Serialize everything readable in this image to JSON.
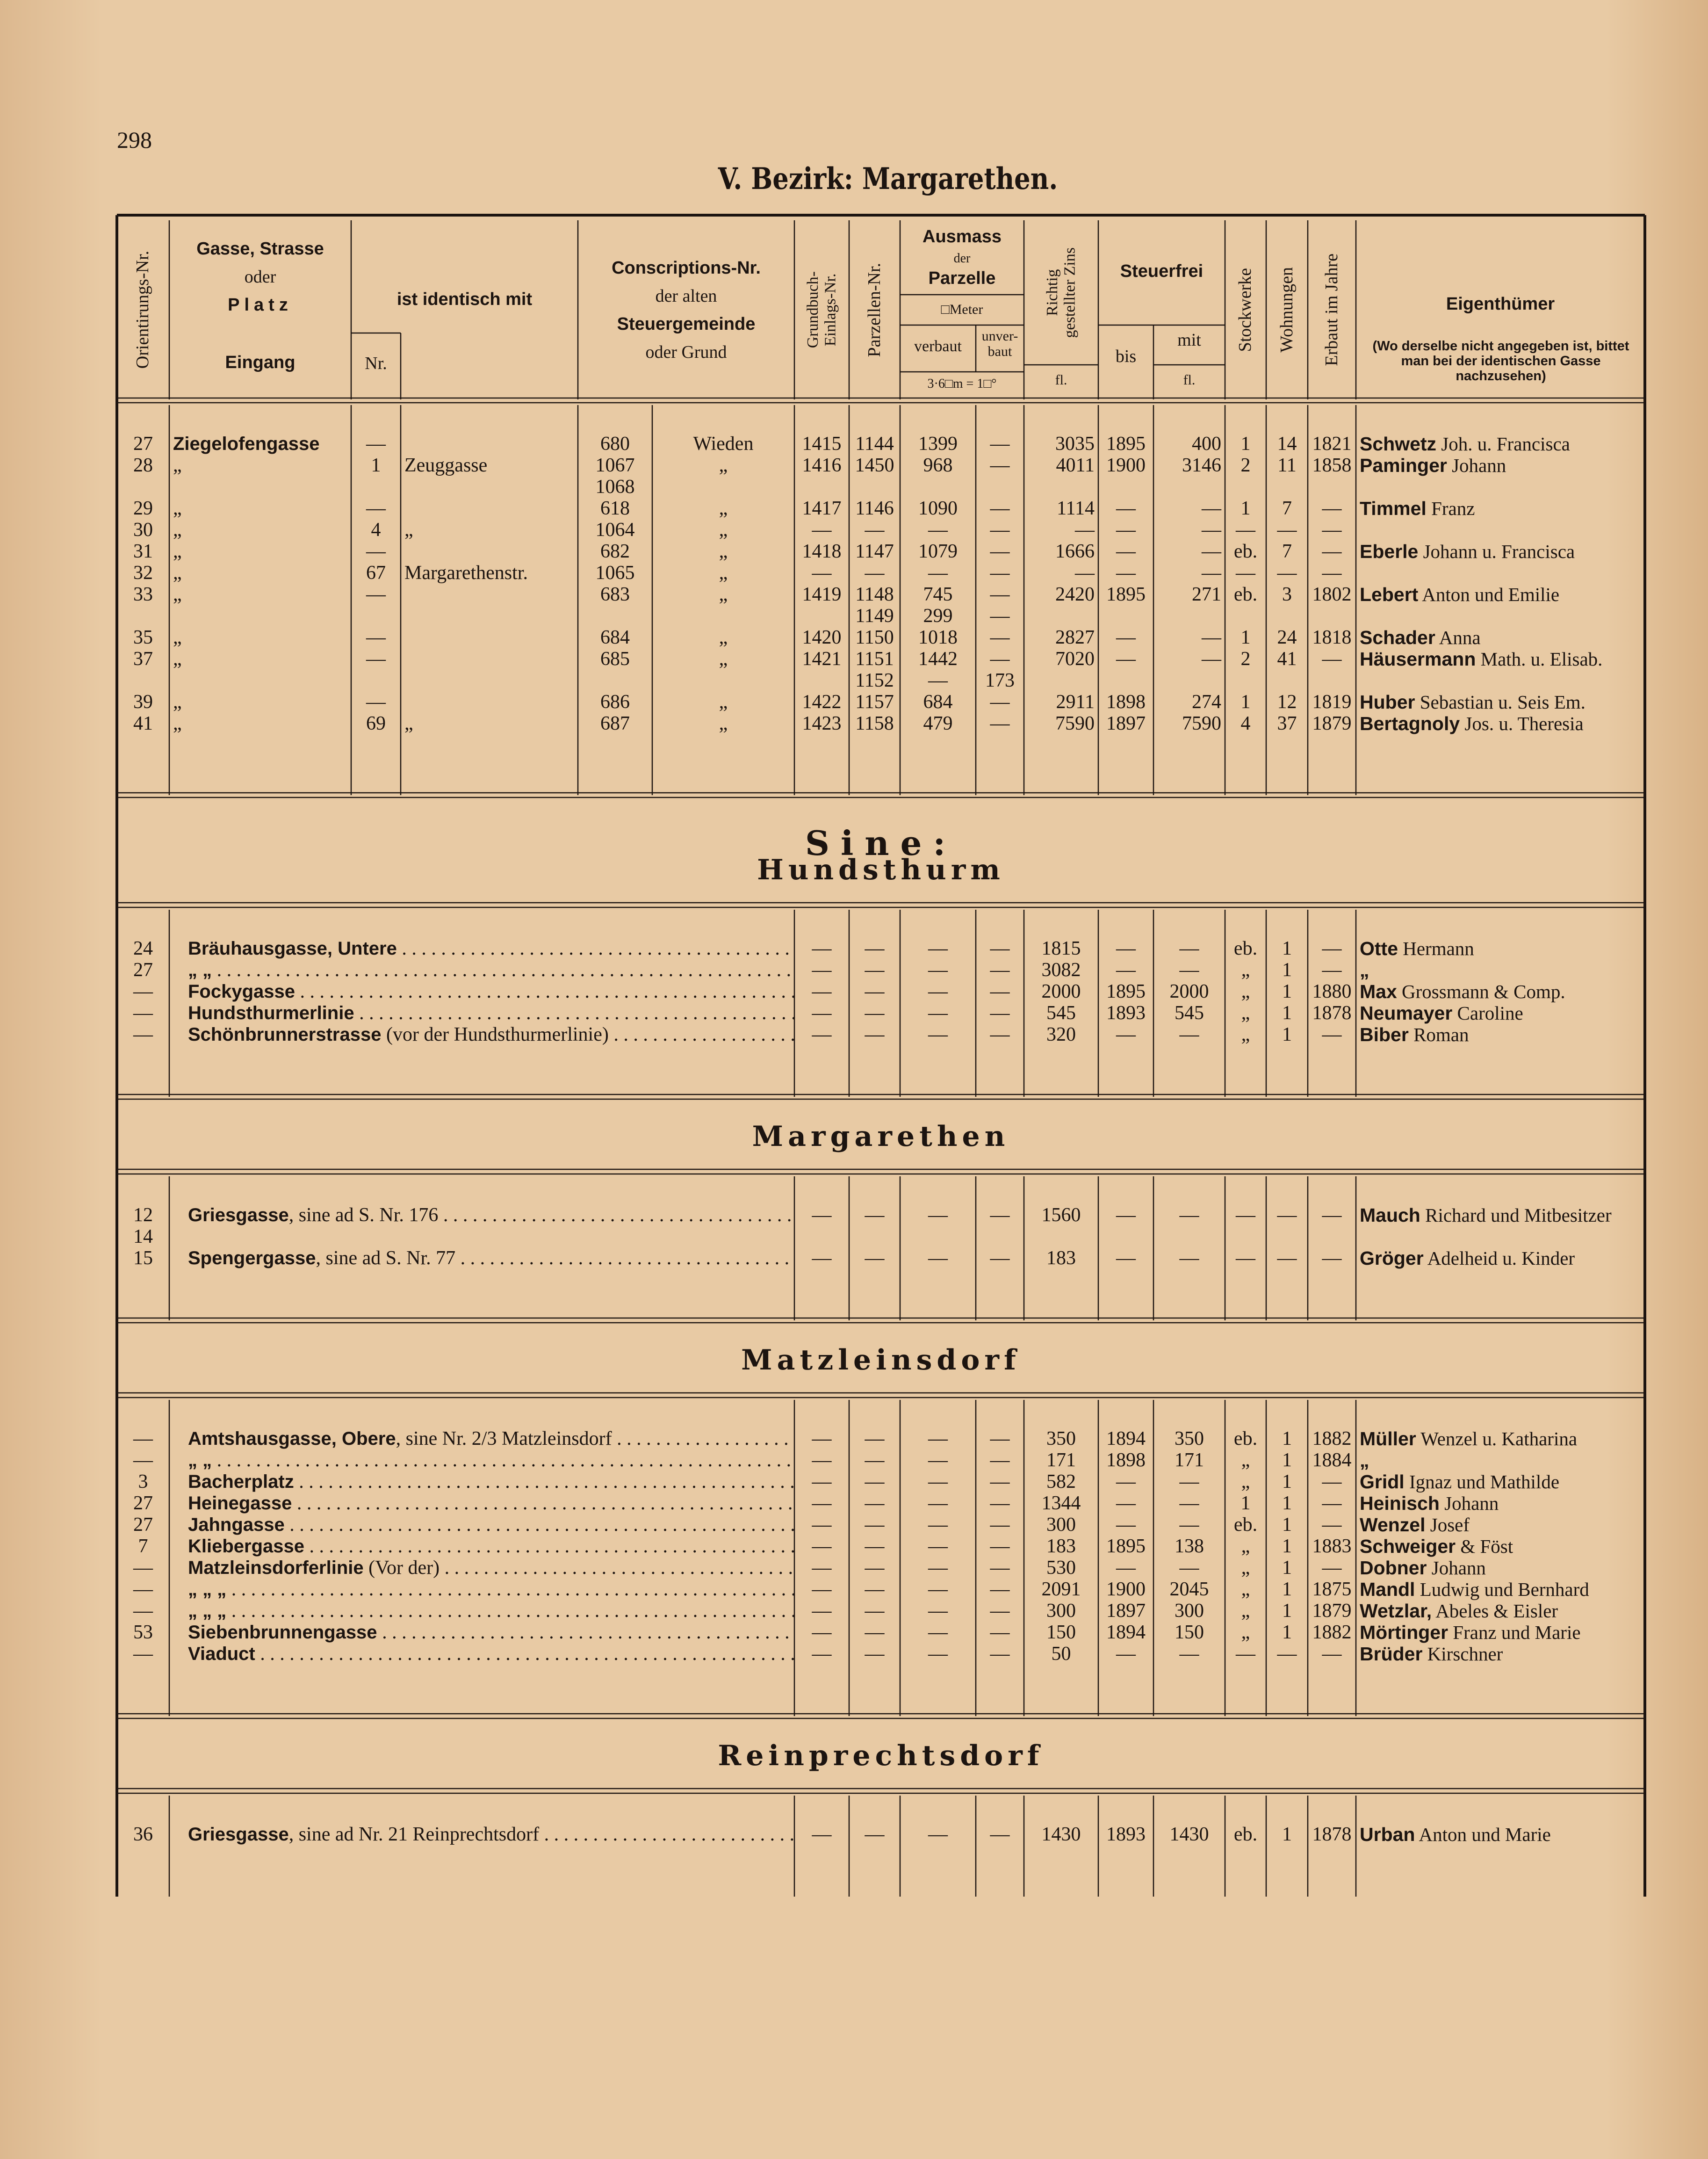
{
  "page_number": "298",
  "title": "V. Bezirk: Margarethen.",
  "header": {
    "orientierungs": "Orientirungs-Nr.",
    "gasse": "Gasse, Strasse",
    "gasse_oder": "oder",
    "platz": "Platz",
    "eingang": "Eingang",
    "identisch": "ist identisch mit",
    "nr": "Nr.",
    "conscr_1": "Conscriptions-Nr.",
    "conscr_2": "der alten",
    "conscr_3": "Steuergemeinde",
    "conscr_4": "oder Grund",
    "grundbuch": "Grundbuch-\nEinlags-Nr.",
    "parzellen": "Parzellen-Nr.",
    "ausmass": "Ausmass",
    "ausmass_der": "der",
    "parzelle": "Parzelle",
    "meter": "□Meter",
    "verbaut": "verbaut",
    "unverbaut": "unver-\nbaut",
    "klafter": "3·6□m = 1□°",
    "zins": "Richtig\ngestellter Zins",
    "zins_fl": "fl.",
    "steuerfrei": "Steuerfrei",
    "bis": "bis",
    "mit": "mit",
    "mit_fl": "fl.",
    "stockwerke": "Stockwerke",
    "wohnungen": "Wohnungen",
    "erbaut": "Erbaut im Jahre",
    "eigenthuemer": "Eigenthümer",
    "eigenthuemer_note": "(Wo derselbe nicht angegeben ist, bittet man bei der identischen Gasse nachzusehen)"
  },
  "main_rows": [
    [
      "27",
      "Ziegelofengasse",
      "—",
      null,
      "680",
      "Wieden",
      "1415",
      "1144",
      "1399",
      "—",
      "3035",
      "1895",
      "400",
      "1",
      "14",
      "1821",
      "Schwetz Joh. u. Francisca"
    ],
    [
      "28",
      "„",
      "1",
      "Zeuggasse",
      "1067\n1068",
      "„",
      "1416",
      "1450",
      "968",
      "—",
      "4011",
      "1900",
      "3146",
      "2",
      "11",
      "1858",
      "Paminger Johann"
    ],
    [
      "29",
      "„",
      "—",
      null,
      "618",
      "„",
      "1417",
      "1146",
      "1090",
      "—",
      "1114",
      "—",
      "—",
      "1",
      "7",
      "—",
      "Timmel Franz"
    ],
    [
      "30",
      "„",
      "4",
      "„",
      "1064",
      "„",
      "—",
      "—",
      "—",
      "—",
      "—",
      "—",
      "—",
      "—",
      "—",
      "—",
      null
    ],
    [
      "31",
      "„",
      "—",
      null,
      "682",
      "„",
      "1418",
      "1147",
      "1079",
      "—",
      "1666",
      "—",
      "—",
      "eb.",
      "7",
      "—",
      "Eberle Johann u. Francisca"
    ],
    [
      "32",
      "„",
      "67",
      "Margarethenstr.",
      "1065",
      "„",
      "—",
      "—",
      "—",
      "—",
      "—",
      "—",
      "—",
      "—",
      "—",
      "—",
      null
    ],
    [
      "33",
      "„",
      "—",
      null,
      "683",
      "„",
      "1419",
      "1148\n1149",
      "745\n299",
      "—\n—",
      "2420",
      "1895",
      "271",
      "eb.",
      "3",
      "1802",
      "Lebert Anton und Emilie"
    ],
    [
      "35",
      "„",
      "—",
      null,
      "684",
      "„",
      "1420",
      "1150",
      "1018",
      "—",
      "2827",
      "—",
      "—",
      "1",
      "24",
      "1818",
      "Schader Anna"
    ],
    [
      "37",
      "„",
      "—",
      null,
      "685",
      "„",
      "1421",
      "1151\n1152",
      "1442\n—",
      "—\n173",
      "7020",
      "—",
      "—",
      "2",
      "41",
      "—",
      "Häusermann Math. u. Elisab."
    ],
    [
      "39",
      "„",
      "—",
      null,
      "686",
      "„",
      "1422",
      "1157",
      "684",
      "—",
      "2911",
      "1898",
      "274",
      "1",
      "12",
      "1819",
      "Huber Sebastian u. Seis Em."
    ],
    [
      "41",
      "„",
      "69",
      "„",
      "687",
      "„",
      "1423",
      "1158",
      "479",
      "—",
      "7590",
      "1897",
      "7590",
      "4",
      "37",
      "1879",
      "Bertagnoly Jos. u. Theresia"
    ]
  ],
  "subheading": "Sine:",
  "sections": [
    {
      "title": "Hundsthurm",
      "rows": [
        [
          "24",
          "Bräuhausgasse, Untere",
          "—",
          "—",
          "—",
          "—",
          "1815",
          "—",
          "—",
          "eb.",
          "1",
          "—",
          "Otte Hermann"
        ],
        [
          "27",
          "„ „",
          "—",
          "—",
          "—",
          "—",
          "3082",
          "—",
          "—",
          "„",
          "1",
          "—",
          "„"
        ],
        [
          "—",
          "Fockygasse",
          "—",
          "—",
          "—",
          "—",
          "2000",
          "1895",
          "2000",
          "„",
          "1",
          "1880",
          "Max Grossmann & Comp."
        ],
        [
          "—",
          "Hundsthurmerlinie",
          "—",
          "—",
          "—",
          "—",
          "545",
          "1893",
          "545",
          "„",
          "1",
          "1878",
          "Neumayer Caroline"
        ],
        [
          "—",
          "Schönbrunnerstrasse (vor der Hundsthurmerlinie)",
          "—",
          "—",
          "—",
          "—",
          "320",
          "—",
          "—",
          "„",
          "1",
          "—",
          "Biber Roman"
        ]
      ]
    },
    {
      "title": "Margarethen",
      "rows": [
        [
          "12\n14",
          "Griesgasse, sine ad S. Nr. 176",
          "—",
          "—",
          "—",
          "—",
          "1560",
          "—",
          "—",
          "—",
          "—",
          "—",
          "Mauch Richard und Mitbesitzer"
        ],
        [
          "15",
          "Spengergasse, sine ad S. Nr. 77",
          "—",
          "—",
          "—",
          "—",
          "183",
          "—",
          "—",
          "—",
          "—",
          "—",
          "Gröger Adelheid u. Kinder"
        ]
      ]
    },
    {
      "title": "Matzleinsdorf",
      "rows": [
        [
          "—",
          "Amtshausgasse, Obere, sine Nr. 2/3 Matzleinsdorf",
          "—",
          "—",
          "—",
          "—",
          "350",
          "1894",
          "350",
          "eb.",
          "1",
          "1882",
          "Müller Wenzel u. Katharina"
        ],
        [
          "—",
          "„ „",
          "—",
          "—",
          "—",
          "—",
          "171",
          "1898",
          "171",
          "„",
          "1",
          "1884",
          "„"
        ],
        [
          "3",
          "Bacherplatz",
          "—",
          "—",
          "—",
          "—",
          "582",
          "—",
          "—",
          "„",
          "1",
          "—",
          "Gridl Ignaz und Mathilde"
        ],
        [
          "27",
          "Heinegasse",
          "—",
          "—",
          "—",
          "—",
          "1344",
          "—",
          "—",
          "1",
          "1",
          "—",
          "Heinisch Johann"
        ],
        [
          "27",
          "Jahngasse",
          "—",
          "—",
          "—",
          "—",
          "300",
          "—",
          "—",
          "eb.",
          "1",
          "—",
          "Wenzel Josef"
        ],
        [
          "7",
          "Kliebergasse",
          "—",
          "—",
          "—",
          "—",
          "183",
          "1895",
          "138",
          "„",
          "1",
          "1883",
          "Schweiger & Föst"
        ],
        [
          "—",
          "Matzleinsdorferlinie (Vor der)",
          "—",
          "—",
          "—",
          "—",
          "530",
          "—",
          "—",
          "„",
          "1",
          "—",
          "Dobner Johann"
        ],
        [
          "—",
          "„ „ „",
          "—",
          "—",
          "—",
          "—",
          "2091",
          "1900",
          "2045",
          "„",
          "1",
          "1875",
          "Mandl Ludwig und Bernhard"
        ],
        [
          "—",
          "„ „ „",
          "—",
          "—",
          "—",
          "—",
          "300",
          "1897",
          "300",
          "„",
          "1",
          "1879",
          "Wetzlar, Abeles & Eisler"
        ],
        [
          "53",
          "Siebenbrunnengasse",
          "—",
          "—",
          "—",
          "—",
          "150",
          "1894",
          "150",
          "„",
          "1",
          "1882",
          "Mörtinger Franz und Marie"
        ],
        [
          "—",
          "Viaduct",
          "—",
          "—",
          "—",
          "—",
          "50",
          "—",
          "—",
          "—",
          "—",
          "—",
          "Brüder Kirschner"
        ]
      ]
    },
    {
      "title": "Reinprechtsdorf",
      "rows": [
        [
          "36",
          "Griesgasse, sine ad Nr. 21 Reinprechtsdorf",
          "—",
          "—",
          "—",
          "—",
          "1430",
          "1893",
          "1430",
          "eb.",
          "1",
          "1878",
          "Urban Anton und Marie"
        ]
      ]
    }
  ]
}
